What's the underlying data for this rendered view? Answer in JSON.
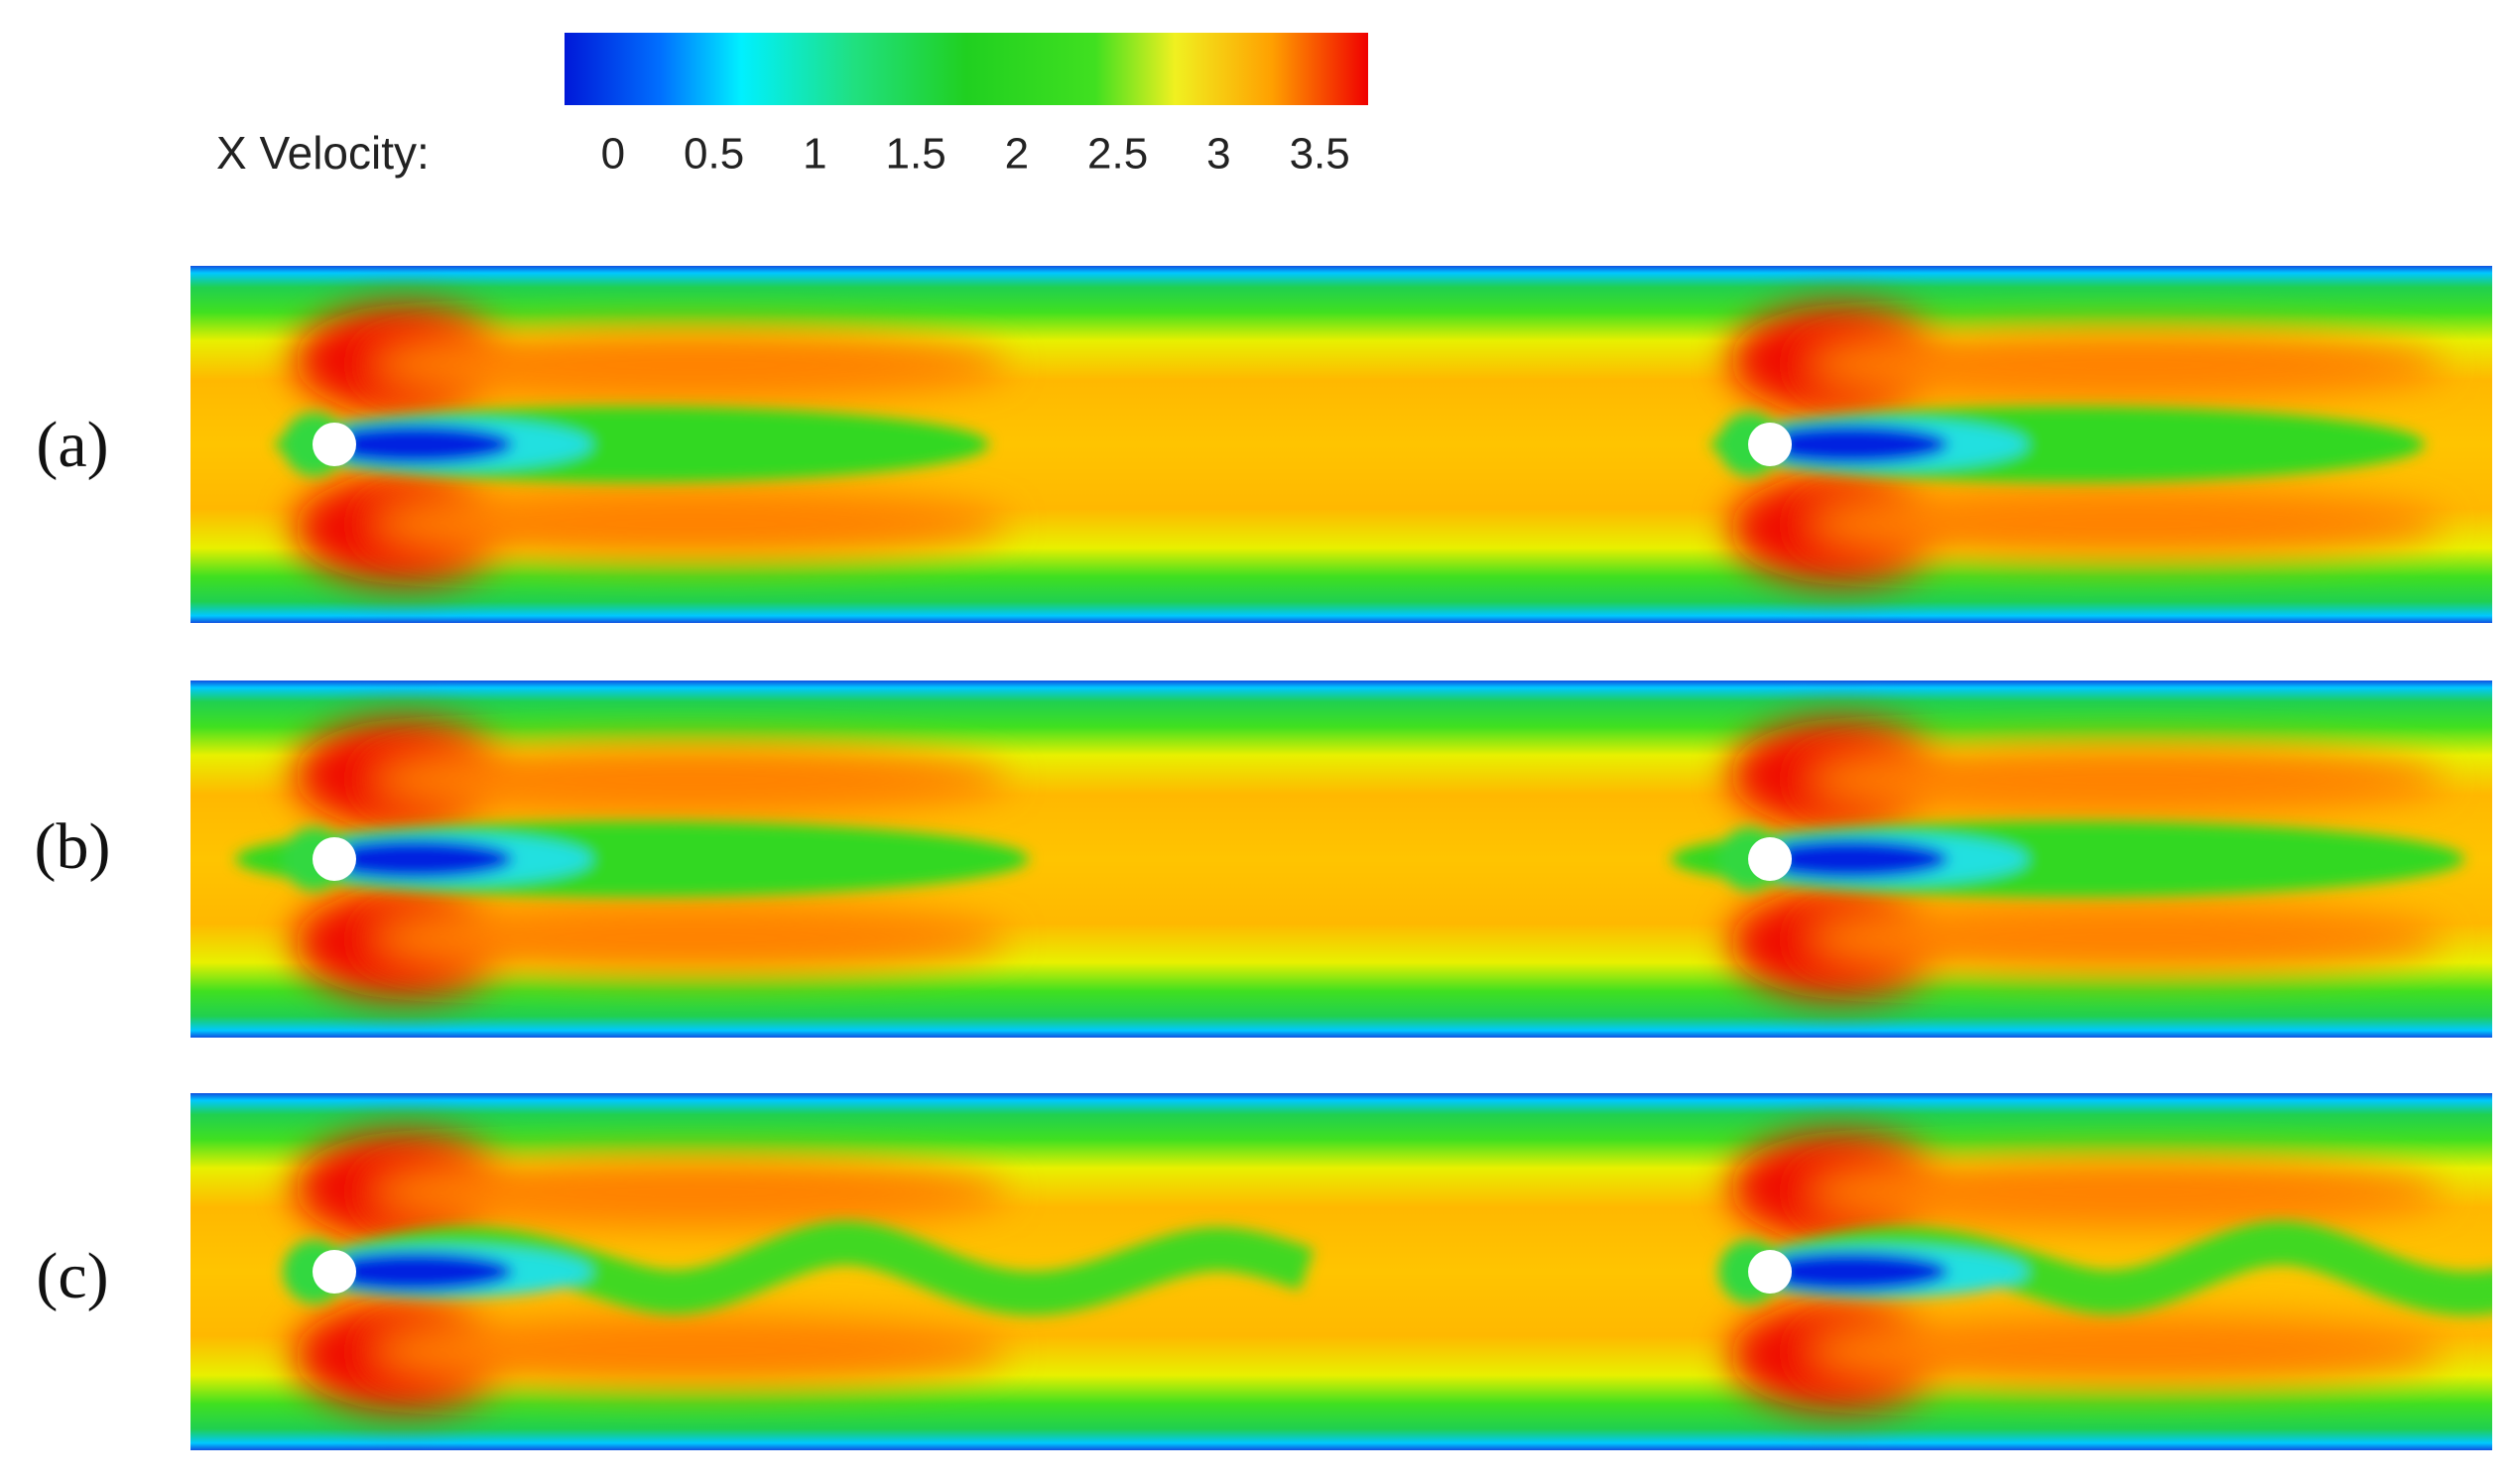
{
  "colorbar": {
    "label": "X Velocity:",
    "lim": [
      -0.24,
      3.74
    ],
    "ticks": [
      0,
      0.5,
      1,
      1.5,
      2,
      2.5,
      3,
      3.5
    ]
  },
  "panels": [
    {
      "label": "(a)"
    },
    {
      "label": "(b)"
    },
    {
      "label": "(c)"
    }
  ]
}
